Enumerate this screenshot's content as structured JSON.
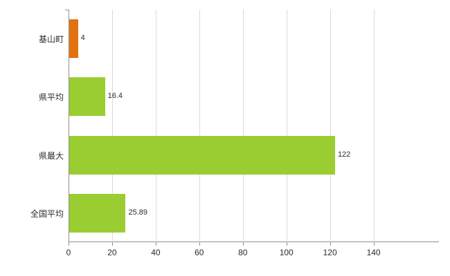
{
  "chart_data": {
    "type": "bar",
    "orientation": "horizontal",
    "title": "",
    "xlabel": "",
    "ylabel": "",
    "categories": [
      "基山町",
      "県平均",
      "県最大",
      "全国平均"
    ],
    "values": [
      4,
      16.4,
      122,
      25.89
    ],
    "value_labels": [
      "4",
      "16.4",
      "122",
      "25.89"
    ],
    "bar_colors": [
      "#e0730f",
      "#9acd32",
      "#9acd32",
      "#9acd32"
    ],
    "x_ticks": [
      0,
      20,
      40,
      60,
      80,
      100,
      120,
      140
    ],
    "xlim": [
      0,
      170
    ],
    "grid": true,
    "legend": "none"
  },
  "colors": {
    "orange_bar": "#e0730f",
    "green_bar": "#9acd32",
    "gridline": "#dadada",
    "axis": "#8e8e8e",
    "text": "#2b2b2b",
    "background": "#ffffff"
  }
}
